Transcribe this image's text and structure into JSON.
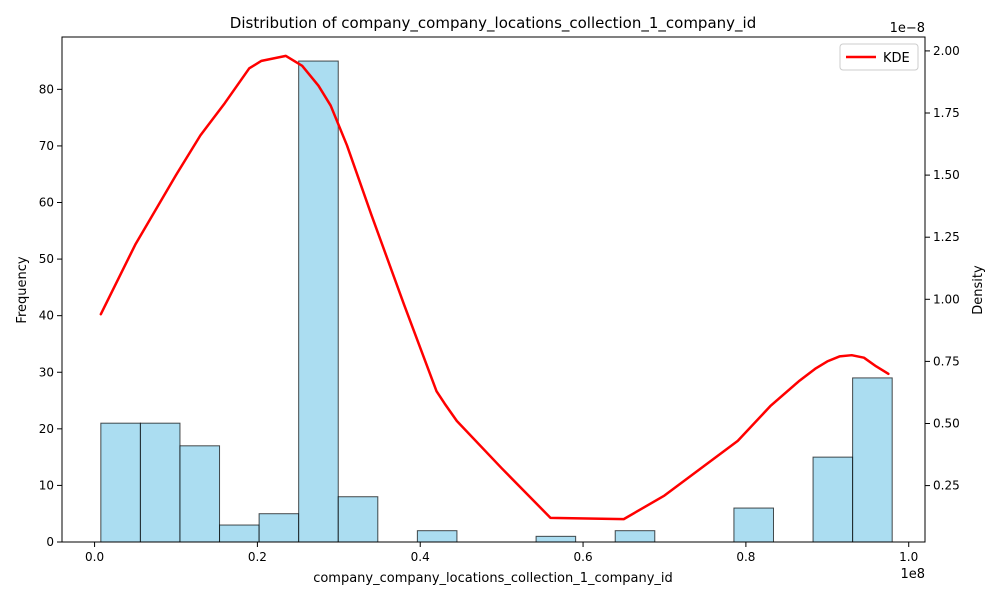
{
  "chart_data": {
    "type": "bar",
    "title": "Distribution of company_company_locations_collection_1_company_id",
    "xlabel": "company_company_locations_collection_1_company_id",
    "ylabel": "Frequency",
    "y2label": "Density",
    "x_offset_text": "1e8",
    "y2_offset_text": "1e−8",
    "xlim": [
      -0.04,
      1.02
    ],
    "ylim": [
      0,
      89.25
    ],
    "y2lim": [
      0.0229,
      2.056
    ],
    "x_ticks": [
      0.0,
      0.2,
      0.4,
      0.6,
      0.8,
      1.0
    ],
    "x_tick_labels": [
      "0.0",
      "0.2",
      "0.4",
      "0.6",
      "0.8",
      "1.0"
    ],
    "y_ticks": [
      0,
      10,
      20,
      30,
      40,
      50,
      60,
      70,
      80
    ],
    "y_tick_labels": [
      "0",
      "10",
      "20",
      "30",
      "40",
      "50",
      "60",
      "70",
      "80"
    ],
    "y2_ticks": [
      0.25,
      0.5,
      0.75,
      1.0,
      1.25,
      1.5,
      1.75,
      2.0
    ],
    "y2_tick_labels": [
      "0.25",
      "0.50",
      "0.75",
      "1.00",
      "1.25",
      "1.50",
      "1.75",
      "2.00"
    ],
    "grid": false,
    "legend_position": "top-right",
    "histogram": {
      "bin_edges": [
        0.0077,
        0.0563,
        0.1049,
        0.1535,
        0.2021,
        0.2507,
        0.2993,
        0.3479,
        0.3965,
        0.4451,
        0.4937,
        0.5423,
        0.5909,
        0.6395,
        0.6881,
        0.7367,
        0.7853,
        0.8339,
        0.8825,
        0.9311,
        0.9797
      ],
      "counts": [
        21,
        21,
        17,
        3,
        5,
        85,
        8,
        0,
        2,
        0,
        0,
        1,
        0,
        2,
        0,
        0,
        6,
        0,
        15,
        29
      ],
      "fill_color": "#87ceeb",
      "edge_color": "#000000"
    },
    "series": [
      {
        "name": "KDE",
        "color": "#ff0000",
        "x": [
          0.0077,
          0.05,
          0.1,
          0.13,
          0.16,
          0.19,
          0.205,
          0.22,
          0.235,
          0.255,
          0.275,
          0.29,
          0.31,
          0.34,
          0.38,
          0.42,
          0.43,
          0.445,
          0.5,
          0.56,
          0.65,
          0.7,
          0.79,
          0.83,
          0.865,
          0.885,
          0.9,
          0.915,
          0.93,
          0.945,
          0.96,
          0.975
        ],
        "y": [
          0.94,
          1.22,
          1.5,
          1.66,
          1.79,
          1.93,
          1.96,
          1.97,
          1.98,
          1.94,
          1.86,
          1.78,
          1.62,
          1.34,
          0.98,
          0.63,
          0.58,
          0.51,
          0.32,
          0.12,
          0.115,
          0.21,
          0.43,
          0.57,
          0.67,
          0.72,
          0.75,
          0.77,
          0.775,
          0.765,
          0.73,
          0.7
        ]
      }
    ]
  }
}
